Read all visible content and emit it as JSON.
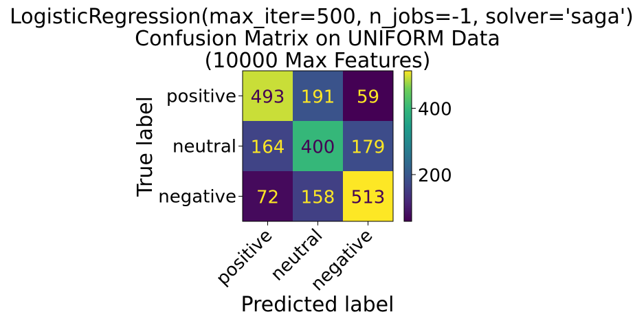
{
  "chart_data": {
    "type": "heatmap",
    "title_lines": [
      "LogisticRegression(max_iter=500, n_jobs=-1, solver='saga')",
      "Confusion Matrix on UNIFORM Data",
      "(10000 Max Features)"
    ],
    "xlabel": "Predicted label",
    "ylabel": "True label",
    "row_labels": [
      "positive",
      "neutral",
      "negative"
    ],
    "col_labels": [
      "positive",
      "neutral",
      "negative"
    ],
    "values": [
      [
        493,
        191,
        59
      ],
      [
        164,
        400,
        179
      ],
      [
        72,
        158,
        513
      ]
    ],
    "colormap": "viridis",
    "colorbar": {
      "min": 59,
      "max": 513,
      "ticks": [
        200,
        400
      ]
    },
    "text_color_light": "#fde725",
    "text_color_dark": "#440154"
  }
}
